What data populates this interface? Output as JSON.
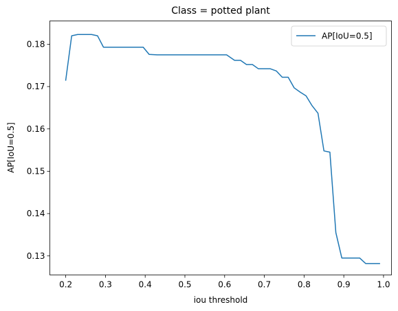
{
  "chart_data": {
    "type": "line",
    "title": "Class = potted plant",
    "xlabel": "iou threshold",
    "ylabel": "AP[IoU=0.5]",
    "xlim": [
      0.16,
      1.02
    ],
    "ylim": [
      0.1255,
      0.1855
    ],
    "xticks": [
      0.2,
      0.3,
      0.4,
      0.5,
      0.6,
      0.7,
      0.8,
      0.9,
      1.0
    ],
    "xtick_labels": [
      "0.2",
      "0.3",
      "0.4",
      "0.5",
      "0.6",
      "0.7",
      "0.8",
      "0.9",
      "1.0"
    ],
    "yticks": [
      0.13,
      0.14,
      0.15,
      0.16,
      0.17,
      0.18
    ],
    "ytick_labels": [
      "0.13",
      "0.14",
      "0.15",
      "0.16",
      "0.17",
      "0.18"
    ],
    "grid": false,
    "legend_position": "top-right",
    "series": [
      {
        "name": "AP[IoU=0.5]",
        "color": "#1f77b4",
        "x": [
          0.2,
          0.215,
          0.23,
          0.245,
          0.265,
          0.28,
          0.295,
          0.31,
          0.33,
          0.35,
          0.37,
          0.395,
          0.41,
          0.43,
          0.45,
          0.5,
          0.55,
          0.605,
          0.625,
          0.64,
          0.655,
          0.67,
          0.685,
          0.7,
          0.715,
          0.73,
          0.745,
          0.76,
          0.775,
          0.79,
          0.805,
          0.82,
          0.835,
          0.85,
          0.865,
          0.88,
          0.895,
          0.91,
          0.925,
          0.94,
          0.955,
          0.97,
          0.99
        ],
        "y": [
          0.1715,
          0.182,
          0.1823,
          0.1823,
          0.1823,
          0.182,
          0.1793,
          0.1793,
          0.1793,
          0.1793,
          0.1793,
          0.1793,
          0.1776,
          0.1775,
          0.1775,
          0.1775,
          0.1775,
          0.1775,
          0.1762,
          0.1762,
          0.1752,
          0.1752,
          0.1742,
          0.1742,
          0.1742,
          0.1737,
          0.1722,
          0.1722,
          0.1697,
          0.1687,
          0.1678,
          0.1655,
          0.1637,
          0.1548,
          0.1545,
          0.1355,
          0.1295,
          0.1295,
          0.1295,
          0.1295,
          0.1282,
          0.1282,
          0.1282
        ]
      }
    ]
  }
}
